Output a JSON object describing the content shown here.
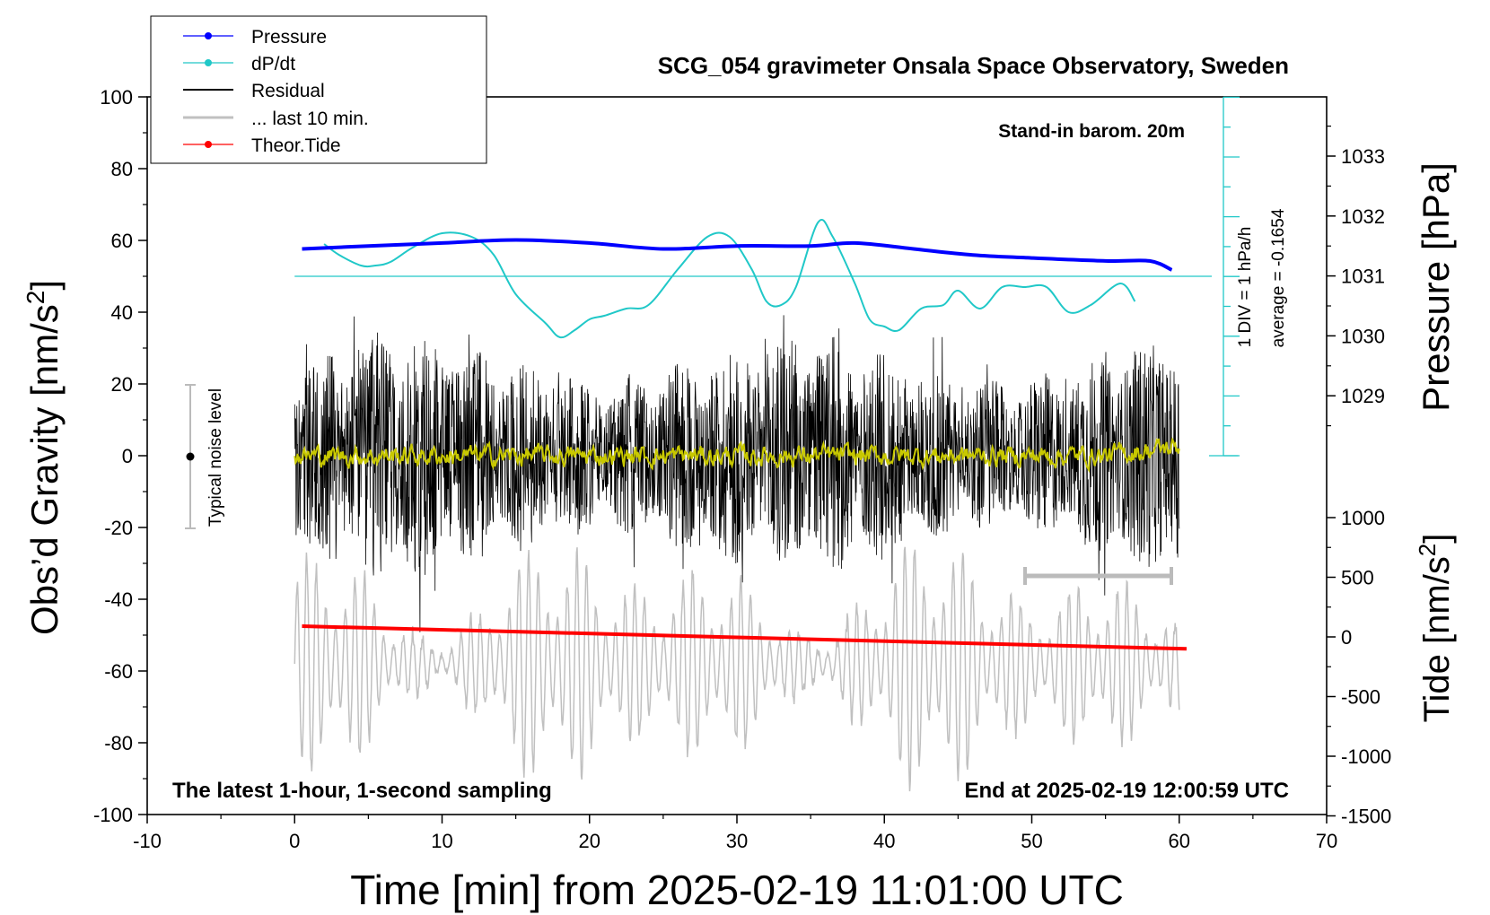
{
  "chart_data": {
    "type": "line",
    "title": "SCG_054 gravimeter Onsala Space Observatory, Sweden",
    "xlabel": "Time [min] from 2025-02-19 11:01:00 UTC",
    "ylabel": "Obs'd Gravity [nm/s²]",
    "y2label": "Pressure [hPa]",
    "y3label": "Tide [nm/s²]",
    "xlim": [
      -10,
      70
    ],
    "ylim": [
      -100,
      100
    ],
    "pressure_lim": [
      1028,
      1034
    ],
    "tide_lim": [
      -1500,
      1500
    ],
    "x_ticks": [
      "-10",
      "0",
      "10",
      "20",
      "30",
      "40",
      "50",
      "60",
      "70"
    ],
    "y_ticks": [
      "100",
      "80",
      "60",
      "40",
      "20",
      "0",
      "-20",
      "-40",
      "-60",
      "-80",
      "-100"
    ],
    "pressure_ticks": [
      "1033",
      "1032",
      "1031",
      "1030",
      "1029"
    ],
    "tide_ticks": [
      "1000",
      "500",
      "0",
      "-500",
      "-1000",
      "-1500"
    ],
    "legend": [
      "Pressure",
      "dP/dt",
      "Residual",
      "... last 10 min.",
      "Theor.Tide"
    ],
    "colors": {
      "pressure": "#0000ff",
      "dpdt": "#20c8c8",
      "residual": "#000000",
      "last10": "#c0c0c0",
      "tide": "#ff0000",
      "smoothed": "#c8c800"
    },
    "annotations": {
      "barometer": "Stand-in barom. 20m",
      "scale": "1 DIV = 1 hPa/h",
      "average": "average = -0.1654",
      "noise": "Typical noise level",
      "bottom_left": "The latest 1-hour, 1-second sampling",
      "bottom_right": "End at 2025-02-19 12:00:59 UTC"
    },
    "series": [
      {
        "name": "Pressure",
        "unit": "hPa",
        "x": [
          0.5,
          5,
          10,
          15,
          20,
          25,
          30,
          35,
          38,
          42,
          46,
          50,
          55,
          58,
          59.5
        ],
        "values": [
          1031.45,
          1031.5,
          1031.55,
          1031.6,
          1031.55,
          1031.45,
          1031.5,
          1031.5,
          1031.55,
          1031.45,
          1031.35,
          1031.3,
          1031.25,
          1031.25,
          1031.1
        ]
      },
      {
        "name": "dP/dt",
        "unit": "nm/s² (plot scale)",
        "x": [
          2,
          3,
          4.5,
          5.5,
          6.5,
          8,
          10,
          12,
          13.5,
          15,
          17,
          18,
          19,
          20,
          21,
          22.5,
          24,
          26,
          28,
          29.5,
          31,
          32,
          33,
          34,
          35.5,
          36.5,
          38,
          39,
          40,
          41,
          42.5,
          44,
          45,
          46.5,
          48,
          49.5,
          51,
          52.5,
          54,
          56,
          57
        ],
        "values": [
          59,
          56,
          53,
          53,
          54,
          58,
          62,
          61,
          56,
          45,
          37,
          33,
          35,
          38,
          39,
          41,
          42,
          52,
          61,
          61,
          52,
          43,
          42,
          47,
          65,
          61,
          48,
          38,
          36,
          35,
          41,
          42,
          46,
          41,
          47,
          47,
          47,
          40,
          42,
          48,
          43
        ]
      },
      {
        "name": "Theor.Tide",
        "unit": "nm/s²",
        "x": [
          0.5,
          60.5
        ],
        "values": [
          90,
          -100
        ]
      }
    ]
  }
}
